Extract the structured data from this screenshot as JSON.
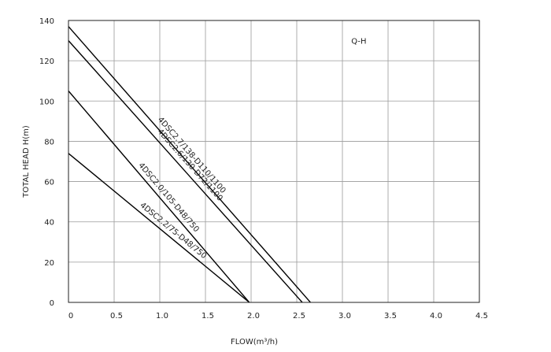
{
  "chart_data": {
    "type": "line",
    "title": "",
    "annotation": "Q-H",
    "xlabel": "FLOW(m³/h)",
    "ylabel": "TOTAL HEAD H(m)",
    "xlim": [
      0,
      4.5
    ],
    "ylim": [
      0,
      140
    ],
    "xticks": [
      0,
      0.5,
      1.0,
      1.5,
      2.0,
      2.5,
      3.0,
      3.5,
      4.0,
      4.5
    ],
    "xtick_labels": [
      "0",
      "0.5",
      "1.0",
      "1.5",
      "2.0",
      "2.5",
      "3.0",
      "3.5",
      "4.0",
      "4.5"
    ],
    "yticks": [
      0,
      20,
      40,
      60,
      80,
      100,
      120,
      140
    ],
    "ytick_labels": [
      "0",
      "20",
      "40",
      "60",
      "80",
      "100",
      "120",
      "140"
    ],
    "grid": true,
    "legend": "none",
    "series": [
      {
        "name": "4DSC2.7/138-D110/1100",
        "x": [
          0,
          2.65
        ],
        "y": [
          137,
          0
        ],
        "color": "#000000"
      },
      {
        "name": "4DSC2.6/130-D72/1100",
        "x": [
          0,
          2.56
        ],
        "y": [
          130,
          0
        ],
        "color": "#000000"
      },
      {
        "name": "4DSC2.0/105-D48/750",
        "x": [
          0,
          1.98
        ],
        "y": [
          105,
          0
        ],
        "color": "#000000"
      },
      {
        "name": "4DSC2.2/75-D48/750",
        "x": [
          0,
          1.98
        ],
        "y": [
          74,
          0
        ],
        "color": "#000000"
      }
    ]
  }
}
